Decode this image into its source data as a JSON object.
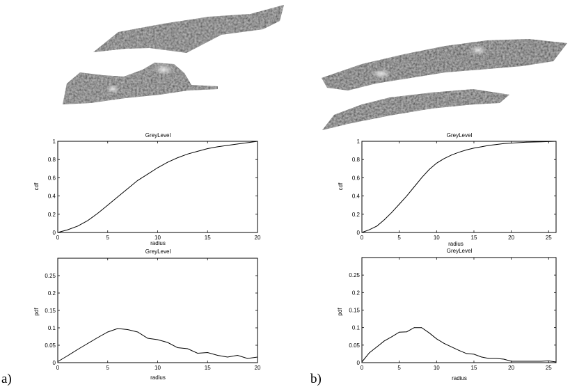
{
  "panels": [
    {
      "letter": "a)"
    },
    {
      "letter": "b)"
    }
  ],
  "chart_data": [
    {
      "type": "line",
      "panel": "a",
      "title": "GreyLevel",
      "xlabel": "radius",
      "ylabel": "cdf",
      "xlim": [
        0,
        20
      ],
      "ylim": [
        0,
        1
      ],
      "xticks": [
        0,
        5,
        10,
        15,
        20
      ],
      "yticks": [
        0,
        0.2,
        0.4,
        0.6,
        0.8,
        1
      ],
      "x": [
        0,
        1,
        2,
        3,
        4,
        5,
        6,
        7,
        8,
        9,
        10,
        11,
        12,
        13,
        14,
        15,
        16,
        17,
        18,
        19,
        20
      ],
      "y": [
        0,
        0.03,
        0.07,
        0.13,
        0.21,
        0.3,
        0.39,
        0.48,
        0.57,
        0.64,
        0.71,
        0.77,
        0.82,
        0.86,
        0.89,
        0.92,
        0.94,
        0.955,
        0.97,
        0.985,
        1.0
      ]
    },
    {
      "type": "line",
      "panel": "a",
      "title": "GreyLevel",
      "xlabel": "radius",
      "ylabel": "pdf",
      "xlim": [
        0,
        20
      ],
      "ylim": [
        0,
        0.3
      ],
      "xticks": [
        0,
        5,
        10,
        15,
        20
      ],
      "yticks": [
        0,
        0.05,
        0.1,
        0.15,
        0.2,
        0.25
      ],
      "x": [
        0,
        1,
        2,
        3,
        4,
        5,
        6,
        7,
        8,
        9,
        10,
        11,
        12,
        13,
        14,
        15,
        16,
        17,
        18,
        19,
        20
      ],
      "y": [
        0.003,
        0.02,
        0.038,
        0.055,
        0.072,
        0.088,
        0.098,
        0.095,
        0.088,
        0.07,
        0.066,
        0.058,
        0.043,
        0.04,
        0.027,
        0.029,
        0.021,
        0.016,
        0.021,
        0.012,
        0.016
      ]
    },
    {
      "type": "line",
      "panel": "b",
      "title": "GreyLevel",
      "xlabel": "radius",
      "ylabel": "cdf",
      "xlim": [
        0,
        26
      ],
      "ylim": [
        0,
        1
      ],
      "xticks": [
        0,
        5,
        10,
        15,
        20,
        25
      ],
      "yticks": [
        0,
        0.2,
        0.4,
        0.6,
        0.8,
        1
      ],
      "x": [
        0,
        1,
        2,
        3,
        4,
        5,
        6,
        7,
        8,
        9,
        10,
        11,
        12,
        13,
        14,
        15,
        16,
        17,
        18,
        19,
        20,
        22,
        24,
        26
      ],
      "y": [
        0,
        0.03,
        0.07,
        0.14,
        0.22,
        0.31,
        0.4,
        0.5,
        0.6,
        0.69,
        0.76,
        0.81,
        0.85,
        0.88,
        0.905,
        0.925,
        0.94,
        0.955,
        0.965,
        0.975,
        0.98,
        0.99,
        0.995,
        1.0
      ]
    },
    {
      "type": "line",
      "panel": "b",
      "title": "GreyLevel",
      "xlabel": "radius",
      "ylabel": "pdf",
      "xlim": [
        0,
        26
      ],
      "ylim": [
        0,
        0.3
      ],
      "xticks": [
        0,
        5,
        10,
        15,
        20,
        25
      ],
      "yticks": [
        0,
        0.05,
        0.1,
        0.15,
        0.2,
        0.25
      ],
      "x": [
        0,
        1,
        2,
        3,
        4,
        5,
        6,
        7,
        8,
        9,
        10,
        11,
        12,
        13,
        14,
        15,
        16,
        17,
        18,
        19,
        20,
        21,
        22,
        23,
        24,
        25,
        26
      ],
      "y": [
        0.002,
        0.028,
        0.045,
        0.062,
        0.074,
        0.087,
        0.088,
        0.1,
        0.1,
        0.085,
        0.068,
        0.055,
        0.045,
        0.035,
        0.026,
        0.024,
        0.016,
        0.012,
        0.012,
        0.01,
        0.004,
        0.004,
        0.004,
        0.004,
        0.004,
        0.005,
        0.002
      ]
    }
  ]
}
